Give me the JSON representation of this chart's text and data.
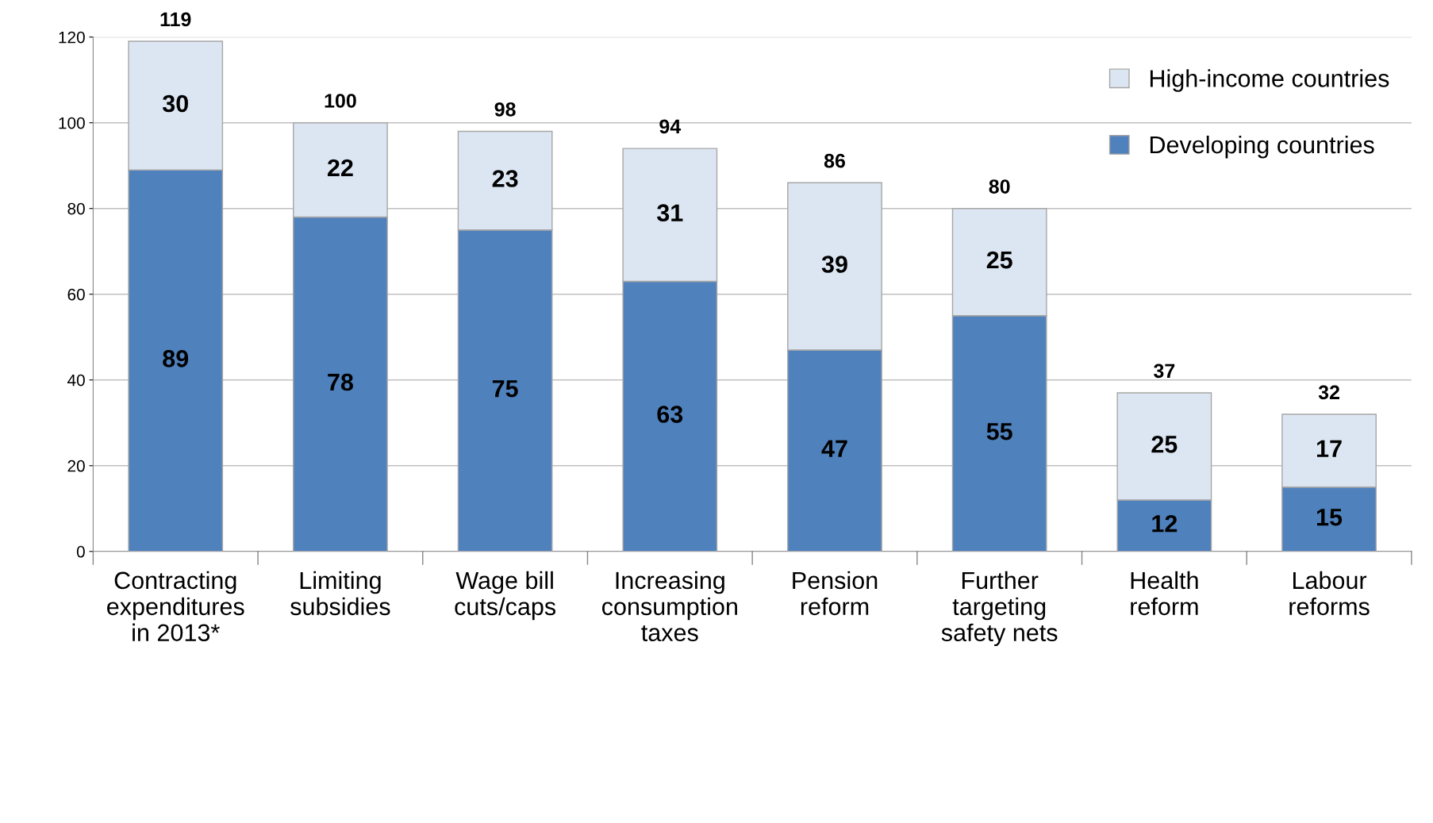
{
  "chart_data": {
    "type": "bar",
    "stacked": true,
    "categories": [
      "Contracting\nexpenditures\nin 2013*",
      "Limiting\nsubsidies",
      "Wage bill\ncuts/caps",
      "Increasing\nconsumption\ntaxes",
      "Pension\nreform",
      "Further\ntargeting\nsafety nets",
      "Health\nreform",
      "Labour\nreforms"
    ],
    "series": [
      {
        "name": "Developing countries",
        "color": "#4f81bd",
        "values": [
          89,
          78,
          75,
          63,
          47,
          55,
          12,
          15
        ]
      },
      {
        "name": "High-income countries",
        "color": "#dce6f2",
        "values": [
          30,
          22,
          23,
          31,
          39,
          25,
          25,
          17
        ]
      }
    ],
    "totals": [
      "119",
      "100",
      "98",
      "94",
      "86",
      "80",
      "37",
      "32"
    ],
    "data_labels": true,
    "ylim": [
      0,
      120
    ],
    "yticks": [
      0,
      20,
      40,
      60,
      80,
      100,
      120
    ],
    "grid": "y",
    "legend": "top right"
  }
}
